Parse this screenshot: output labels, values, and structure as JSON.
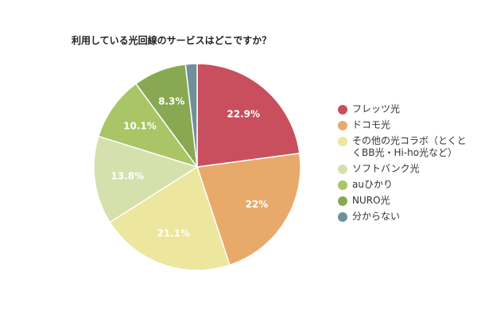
{
  "chart_data": {
    "type": "pie",
    "title": "利用している光回線のサービスはどこですか？",
    "legend_position": "right",
    "slices": [
      {
        "label": "フレッツ光",
        "value": 22.9,
        "data_label": "22.9%",
        "color": "#c94f5f"
      },
      {
        "label": "ドコモ光",
        "value": 22.0,
        "data_label": "22%",
        "color": "#e8aa6a"
      },
      {
        "label": "その他の光コラボ（とくとくBB光・Hi-ho光など）",
        "value": 21.1,
        "data_label": "21.1%",
        "color": "#ece69e"
      },
      {
        "label": "ソフトバンク光",
        "value": 13.8,
        "data_label": "13.8%",
        "color": "#d5e1ac"
      },
      {
        "label": "auひかり",
        "value": 10.1,
        "data_label": "10.1%",
        "color": "#a9c566"
      },
      {
        "label": "NURO光",
        "value": 8.3,
        "data_label": "8.3%",
        "color": "#88a852"
      },
      {
        "label": "分からない",
        "value": 1.8,
        "data_label": "",
        "color": "#6f8f9a"
      }
    ]
  }
}
